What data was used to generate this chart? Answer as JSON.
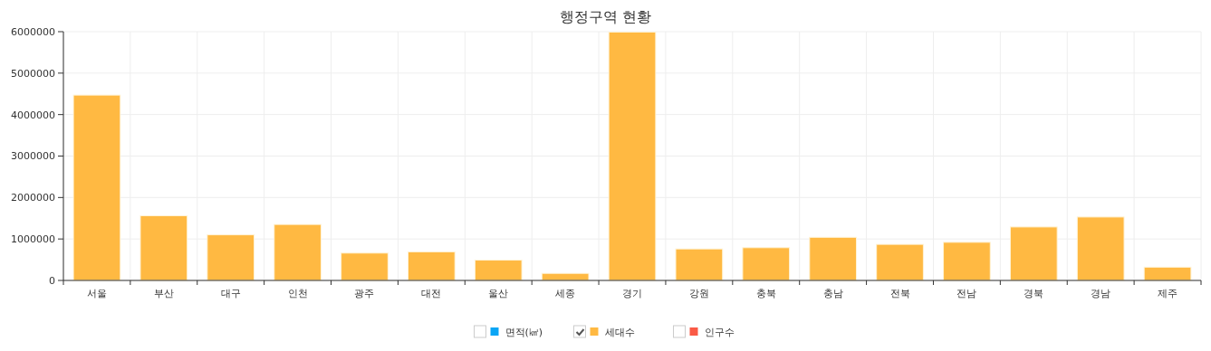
{
  "chart_data": {
    "type": "bar",
    "title": "행정구역 현황",
    "categories": [
      "서울",
      "부산",
      "대구",
      "인천",
      "광주",
      "대전",
      "울산",
      "세종",
      "경기",
      "강원",
      "충북",
      "충남",
      "전북",
      "전남",
      "경북",
      "경남",
      "제주"
    ],
    "series": [
      {
        "name": "면적(㎢)",
        "color": "#0aa5f5",
        "values": [
          null,
          null,
          null,
          null,
          null,
          null,
          null,
          null,
          null,
          null,
          null,
          null,
          null,
          null,
          null,
          null,
          null
        ]
      },
      {
        "name": "세대수",
        "color": "#ffb942",
        "values": [
          4470000,
          1560000,
          1100000,
          1350000,
          660000,
          690000,
          490000,
          170000,
          5990000,
          760000,
          790000,
          1040000,
          870000,
          920000,
          1290000,
          1530000,
          320000
        ]
      },
      {
        "name": "인구수",
        "color": "#fa5a46",
        "values": [
          null,
          null,
          null,
          null,
          null,
          null,
          null,
          null,
          null,
          null,
          null,
          null,
          null,
          null,
          null,
          null,
          null
        ]
      }
    ],
    "ylim": [
      0,
      6000000
    ],
    "yticks": [
      0,
      1000000,
      2000000,
      3000000,
      4000000,
      5000000,
      6000000
    ],
    "grid": true,
    "legend": "bottom"
  }
}
